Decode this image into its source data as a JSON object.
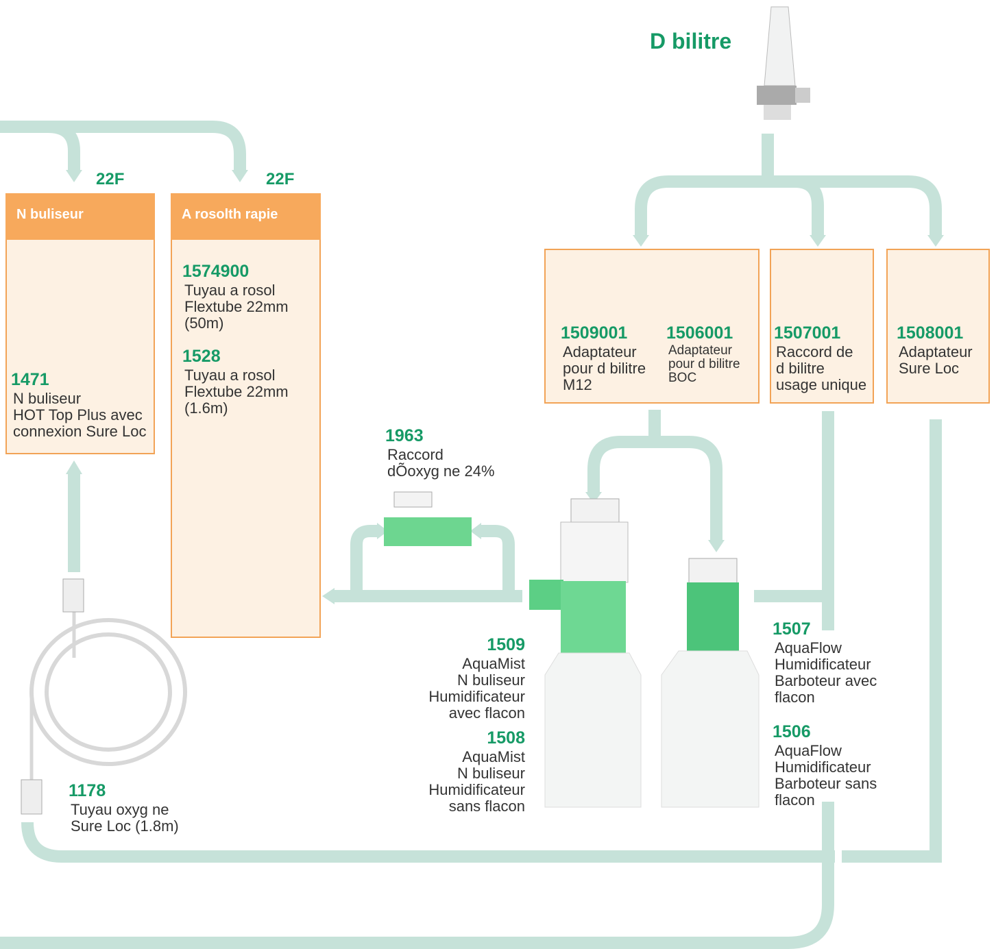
{
  "title": "D bilitre",
  "port_labels": [
    "22F",
    "22F"
  ],
  "boxes": [
    {
      "header": "N buliseur",
      "items": [
        {
          "code": "1471",
          "lines": [
            "N buliseur",
            "HOT Top Plus avec",
            "connexion Sure Loc"
          ]
        }
      ]
    },
    {
      "header": "A rosolth rapie",
      "items": [
        {
          "code": "1574900",
          "lines": [
            "Tuyau a rosol",
            "Flextube 22mm",
            "(50m)"
          ]
        },
        {
          "code": "1528",
          "lines": [
            "Tuyau a rosol",
            "Flextube 22mm",
            "(1.6m)"
          ]
        }
      ]
    },
    {
      "items": [
        {
          "code": "1509001",
          "lines": [
            "Adaptateur",
            "pour d bilitre",
            "M12"
          ]
        },
        {
          "code": "1506001",
          "lines": [
            "Adaptateur",
            "pour d bilitre",
            "BOC"
          ]
        }
      ]
    },
    {
      "items": [
        {
          "code": "1507001",
          "lines": [
            "Raccord de",
            "d bilitre",
            "usage unique"
          ]
        }
      ]
    },
    {
      "items": [
        {
          "code": "1508001",
          "lines": [
            "Adaptateur",
            "Sure Loc"
          ]
        }
      ]
    }
  ],
  "labels": [
    {
      "code": "1963",
      "lines": [
        "Raccord",
        "dÕoxyg ne 24%"
      ]
    },
    {
      "code": "1509",
      "lines": [
        "AquaMist",
        "N buliseur",
        "Humidificateur",
        "avec flacon"
      ]
    },
    {
      "code": "1508",
      "lines": [
        "AquaMist",
        "N buliseur",
        "Humidificateur",
        "sans flacon"
      ]
    },
    {
      "code": "1507",
      "lines": [
        "AquaFlow",
        "Humidificateur",
        "Barboteur avec",
        "flacon"
      ]
    },
    {
      "code": "1506",
      "lines": [
        "AquaFlow",
        "Humidificateur",
        "Barboteur sans",
        "flacon"
      ]
    },
    {
      "code": "1178",
      "lines": [
        "Tuyau oxyg ne",
        "Sure Loc (1.8m)"
      ]
    }
  ]
}
